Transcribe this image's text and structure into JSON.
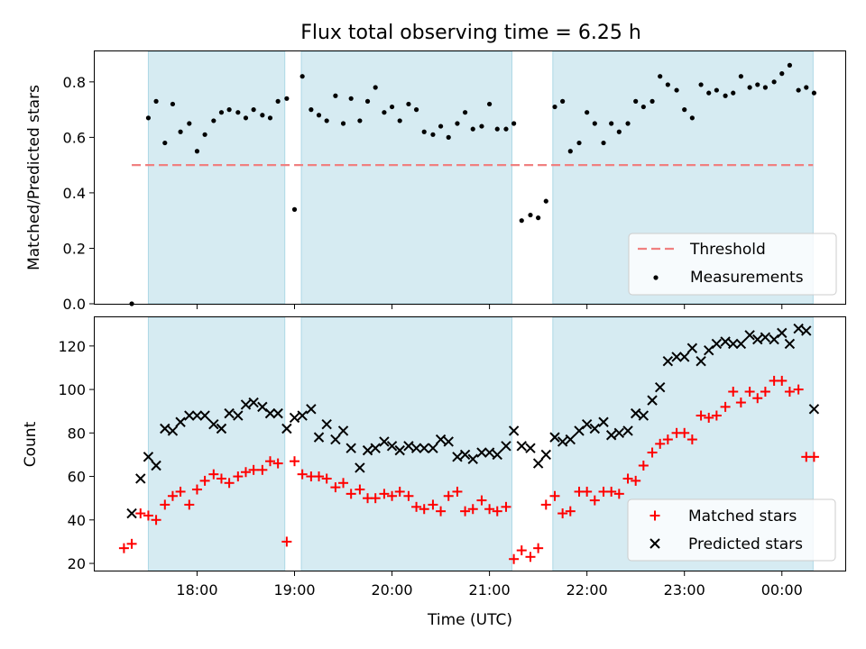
{
  "chart_data": {
    "title": "Flux total observing time = 6.25 h",
    "type": "scatter",
    "xlabel": "Time (UTC)",
    "x_unit": "hours UTC (values past 24 are after midnight)",
    "xlim": [
      16.95,
      24.65
    ],
    "x_ticks": [
      18,
      19,
      20,
      21,
      22,
      23,
      24
    ],
    "x_tick_labels": [
      "18:00",
      "19:00",
      "20:00",
      "21:00",
      "22:00",
      "23:00",
      "00:00"
    ],
    "shade_color": "#add8e6",
    "observing_windows": [
      [
        17.5,
        18.9
      ],
      [
        19.07,
        21.23
      ],
      [
        21.65,
        24.32
      ]
    ],
    "panels": [
      {
        "ylabel": "Matched/Predicted stars",
        "ylim": [
          0,
          0.91
        ],
        "y_ticks": [
          0,
          0.2,
          0.4,
          0.6,
          0.8
        ],
        "y_tick_labels": [
          "0.0",
          "0.2",
          "0.4",
          "0.6",
          "0.8"
        ],
        "legend_position": "lower-right",
        "threshold": {
          "name": "Threshold",
          "value": 0.5,
          "x_range": [
            17.33,
            24.32
          ],
          "color": "#f08080",
          "style": "dashed"
        },
        "series": [
          {
            "name": "Measurements",
            "marker": "dot",
            "color": "#000000",
            "x": [
              17.33,
              17.5,
              17.58,
              17.67,
              17.75,
              17.83,
              17.92,
              18,
              18.08,
              18.17,
              18.25,
              18.33,
              18.42,
              18.5,
              18.58,
              18.67,
              18.75,
              18.83,
              18.92,
              19,
              19.08,
              19.17,
              19.25,
              19.33,
              19.42,
              19.5,
              19.58,
              19.67,
              19.75,
              19.83,
              19.92,
              20,
              20.08,
              20.17,
              20.25,
              20.33,
              20.42,
              20.5,
              20.58,
              20.67,
              20.75,
              20.83,
              20.92,
              21,
              21.08,
              21.17,
              21.25,
              21.33,
              21.42,
              21.5,
              21.58,
              21.67,
              21.75,
              21.83,
              21.92,
              22,
              22.08,
              22.17,
              22.25,
              22.33,
              22.42,
              22.5,
              22.58,
              22.67,
              22.75,
              22.83,
              22.92,
              23,
              23.08,
              23.17,
              23.25,
              23.33,
              23.42,
              23.5,
              23.58,
              23.67,
              23.75,
              23.83,
              23.92,
              24,
              24.08,
              24.17,
              24.25,
              24.33
            ],
            "y": [
              0.0,
              0.67,
              0.73,
              0.58,
              0.72,
              0.62,
              0.65,
              0.55,
              0.61,
              0.66,
              0.69,
              0.7,
              0.69,
              0.67,
              0.7,
              0.68,
              0.67,
              0.73,
              0.74,
              0.34,
              0.82,
              0.7,
              0.68,
              0.66,
              0.75,
              0.65,
              0.74,
              0.66,
              0.73,
              0.78,
              0.69,
              0.71,
              0.66,
              0.72,
              0.7,
              0.62,
              0.61,
              0.64,
              0.6,
              0.65,
              0.69,
              0.63,
              0.64,
              0.72,
              0.63,
              0.63,
              0.65,
              0.3,
              0.32,
              0.31,
              0.37,
              0.71,
              0.73,
              0.55,
              0.58,
              0.69,
              0.65,
              0.58,
              0.65,
              0.62,
              0.65,
              0.73,
              0.71,
              0.73,
              0.82,
              0.79,
              0.77,
              0.7,
              0.67,
              0.79,
              0.76,
              0.77,
              0.75,
              0.76,
              0.82,
              0.78,
              0.79,
              0.78,
              0.8,
              0.83,
              0.86,
              0.77,
              0.78,
              0.76
            ]
          }
        ],
        "legend": [
          "Threshold",
          "Measurements"
        ]
      },
      {
        "ylabel": "Count",
        "ylim": [
          16.7,
          133.2
        ],
        "y_ticks": [
          20,
          40,
          60,
          80,
          100,
          120
        ],
        "y_tick_labels": [
          "20",
          "40",
          "60",
          "80",
          "100",
          "120"
        ],
        "legend_position": "lower-right",
        "series": [
          {
            "name": "Matched stars",
            "marker": "plus",
            "color": "#ff0000",
            "x": [
              17.25,
              17.33,
              17.42,
              17.5,
              17.58,
              17.67,
              17.75,
              17.83,
              17.92,
              18,
              18.08,
              18.17,
              18.25,
              18.33,
              18.42,
              18.5,
              18.58,
              18.67,
              18.75,
              18.83,
              18.92,
              19,
              19.08,
              19.17,
              19.25,
              19.33,
              19.42,
              19.5,
              19.58,
              19.67,
              19.75,
              19.83,
              19.92,
              20,
              20.08,
              20.17,
              20.25,
              20.33,
              20.42,
              20.5,
              20.58,
              20.67,
              20.75,
              20.83,
              20.92,
              21,
              21.08,
              21.17,
              21.25,
              21.33,
              21.42,
              21.5,
              21.58,
              21.67,
              21.75,
              21.83,
              21.92,
              22,
              22.08,
              22.17,
              22.25,
              22.33,
              22.42,
              22.5,
              22.58,
              22.67,
              22.75,
              22.83,
              22.92,
              23,
              23.08,
              23.17,
              23.25,
              23.33,
              23.42,
              23.5,
              23.58,
              23.67,
              23.75,
              23.83,
              23.92,
              24,
              24.08,
              24.17,
              24.25,
              24.33
            ],
            "y": [
              27,
              29,
              43,
              42,
              40,
              47,
              51,
              53,
              47,
              54,
              58,
              61,
              59,
              57,
              60,
              62,
              63,
              63,
              67,
              66,
              30,
              67,
              61,
              60,
              60,
              59,
              55,
              57,
              52,
              54,
              50,
              50,
              52,
              51,
              53,
              51,
              46,
              45,
              47,
              44,
              51,
              53,
              44,
              45,
              49,
              45,
              44,
              46,
              22,
              26,
              23,
              27,
              47,
              51,
              43,
              44,
              53,
              53,
              49,
              53,
              53,
              52,
              59,
              58,
              65,
              71,
              75,
              77,
              80,
              80,
              77,
              88,
              87,
              88,
              92,
              99,
              94,
              99,
              96,
              99,
              104,
              104,
              99,
              100,
              69,
              69
            ]
          },
          {
            "name": "Predicted stars",
            "marker": "x",
            "color": "#000000",
            "x": [
              17.33,
              17.42,
              17.5,
              17.58,
              17.67,
              17.75,
              17.83,
              17.92,
              18,
              18.08,
              18.17,
              18.25,
              18.33,
              18.42,
              18.5,
              18.58,
              18.67,
              18.75,
              18.83,
              18.92,
              19,
              19.08,
              19.17,
              19.25,
              19.33,
              19.42,
              19.5,
              19.58,
              19.67,
              19.75,
              19.83,
              19.92,
              20,
              20.08,
              20.17,
              20.25,
              20.33,
              20.42,
              20.5,
              20.58,
              20.67,
              20.75,
              20.83,
              20.92,
              21,
              21.08,
              21.17,
              21.25,
              21.33,
              21.42,
              21.5,
              21.58,
              21.67,
              21.75,
              21.83,
              21.92,
              22,
              22.08,
              22.17,
              22.25,
              22.33,
              22.42,
              22.5,
              22.58,
              22.67,
              22.75,
              22.83,
              22.92,
              23,
              23.08,
              23.17,
              23.25,
              23.33,
              23.42,
              23.5,
              23.58,
              23.67,
              23.75,
              23.83,
              23.92,
              24,
              24.08,
              24.17,
              24.25,
              24.33
            ],
            "y": [
              43,
              59,
              69,
              65,
              82,
              81,
              85,
              88,
              88,
              88,
              84,
              82,
              89,
              88,
              93,
              94,
              92,
              89,
              89,
              82,
              87,
              88,
              91,
              78,
              84,
              77,
              81,
              73,
              64,
              72,
              73,
              76,
              74,
              72,
              74,
              73,
              73,
              73,
              77,
              76,
              69,
              70,
              68,
              71,
              71,
              70,
              74,
              81,
              74,
              73,
              66,
              70,
              78,
              76,
              77,
              81,
              84,
              82,
              85,
              79,
              80,
              81,
              89,
              88,
              95,
              101,
              113,
              115,
              115,
              119,
              113,
              118,
              121,
              122,
              121,
              121,
              125,
              123,
              124,
              123,
              126,
              121,
              128,
              127,
              91
            ]
          }
        ],
        "legend": [
          "Matched stars",
          "Predicted stars"
        ]
      }
    ]
  }
}
